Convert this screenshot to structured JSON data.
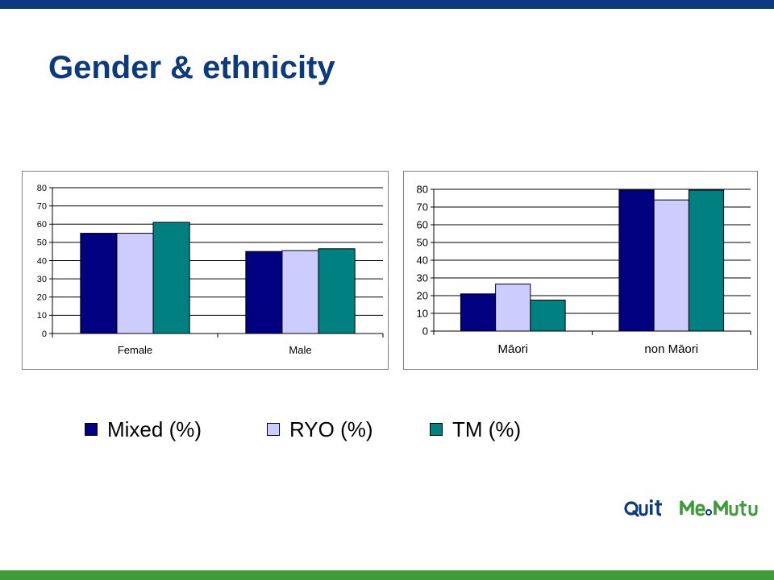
{
  "title": "Gender & ethnicity",
  "colors": {
    "mixed": "#000080",
    "ryo": "#ccccff",
    "tm": "#008080",
    "brand_blue": "#0b3a7e",
    "brand_green": "#3f9a3a"
  },
  "legend": {
    "items": [
      {
        "label": "Mixed (%)",
        "color": "#000080"
      },
      {
        "label": "RYO (%)",
        "color": "#ccccff"
      },
      {
        "label": "TM (%)",
        "color": "#008080"
      }
    ]
  },
  "logos": {
    "quit": "Quit",
    "memutu": "Me Mutu"
  },
  "chart_data": [
    {
      "type": "bar",
      "title": "",
      "xlabel": "",
      "ylabel": "",
      "categories": [
        "Female",
        "Male"
      ],
      "ylim": [
        0,
        80
      ],
      "yticks": [
        0,
        10,
        20,
        30,
        40,
        50,
        60,
        70,
        80
      ],
      "grid": true,
      "series": [
        {
          "name": "Mixed (%)",
          "values": [
            55,
            45
          ]
        },
        {
          "name": "RYO (%)",
          "values": [
            55,
            45.5
          ]
        },
        {
          "name": "TM (%)",
          "values": [
            61,
            46.5
          ]
        }
      ]
    },
    {
      "type": "bar",
      "title": "",
      "xlabel": "",
      "ylabel": "",
      "categories": [
        "Māori",
        "non Māori"
      ],
      "ylim": [
        0,
        80
      ],
      "yticks": [
        0,
        10,
        20,
        30,
        40,
        50,
        60,
        70,
        80
      ],
      "grid": true,
      "series": [
        {
          "name": "Mixed (%)",
          "values": [
            21,
            79.5
          ]
        },
        {
          "name": "RYO (%)",
          "values": [
            26.5,
            74
          ]
        },
        {
          "name": "TM (%)",
          "values": [
            17.5,
            79.5
          ]
        }
      ]
    }
  ]
}
